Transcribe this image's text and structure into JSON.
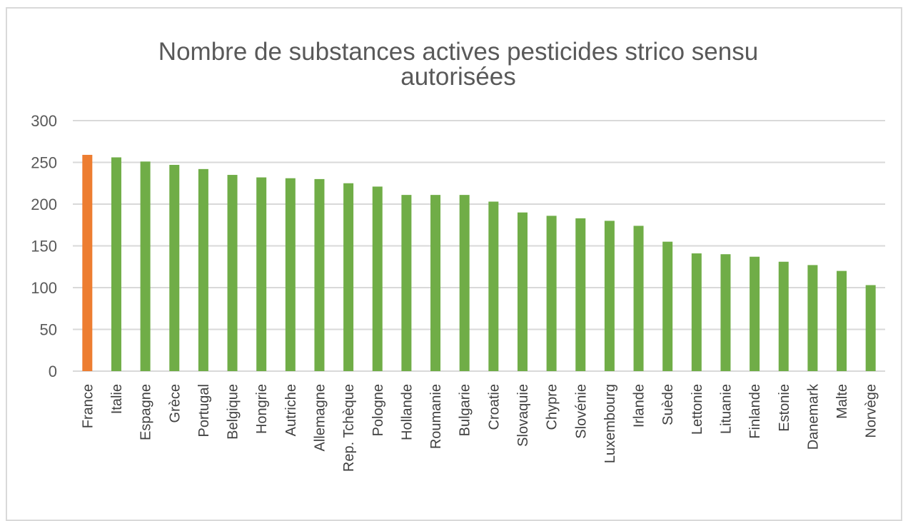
{
  "chart_data": {
    "type": "bar",
    "title": [
      "Nombre de substances actives pesticides strico sensu",
      "autorisées"
    ],
    "categories": [
      "France",
      "Italie",
      "Espagne",
      "Grèce",
      "Portugal",
      "Belgique",
      "Hongrie",
      "Autriche",
      "Allemagne",
      "Rep. Tchèque",
      "Pologne",
      "Hollande",
      "Roumanie",
      "Bulgarie",
      "Croatie",
      "Slovaquie",
      "Chypre",
      "Slovénie",
      "Luxembourg",
      "Irlande",
      "Suède",
      "Lettonie",
      "Lituanie",
      "Finlande",
      "Estonie",
      "Danemark",
      "Malte",
      "Norvège"
    ],
    "values": [
      259,
      256,
      251,
      247,
      242,
      235,
      232,
      231,
      230,
      225,
      221,
      211,
      211,
      211,
      203,
      190,
      186,
      183,
      180,
      174,
      155,
      141,
      140,
      137,
      131,
      127,
      120,
      103
    ],
    "yticks": [
      "0",
      "50",
      "100",
      "150",
      "200",
      "250",
      "300"
    ],
    "ylim": [
      0,
      300
    ],
    "grid": true,
    "colors": {
      "highlight": "#ed7d31",
      "default": "#70ad47",
      "grid": "#d9d9d9"
    },
    "highlight_category": "France"
  }
}
